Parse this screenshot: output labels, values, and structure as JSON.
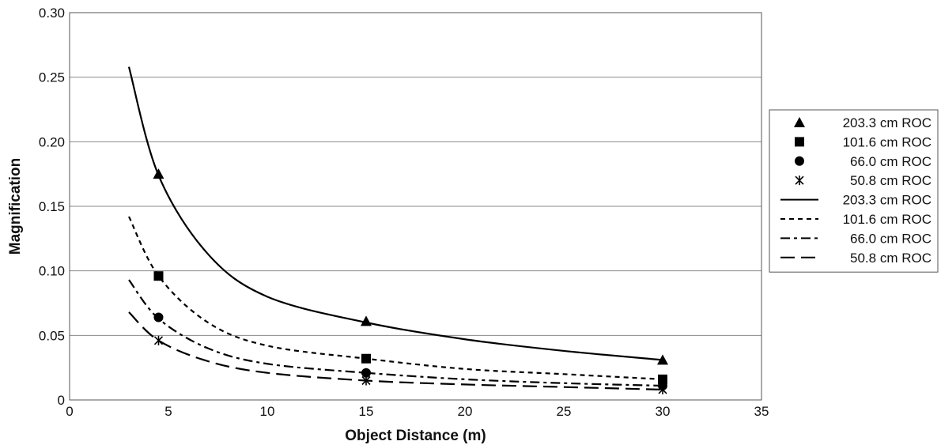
{
  "chart_data": {
    "type": "scatter",
    "title": "",
    "xlabel": "Object Distance (m)",
    "ylabel": "Magnification",
    "xlim": [
      0,
      35
    ],
    "ylim": [
      0,
      0.3
    ],
    "x_ticks": [
      0,
      5,
      10,
      15,
      20,
      25,
      30,
      35
    ],
    "y_ticks": [
      0,
      0.05,
      0.1,
      0.15,
      0.2,
      0.25,
      0.3
    ],
    "x_tick_labels": [
      "0",
      "5",
      "10",
      "15",
      "20",
      "25",
      "30",
      "35"
    ],
    "y_tick_labels": [
      "0",
      "0.05",
      "0.10",
      "0.15",
      "0.20",
      "0.25",
      "0.30"
    ],
    "grid": "horizontal",
    "legend_position": "right",
    "series": [
      {
        "name": "203.3 cm ROC",
        "kind": "points",
        "marker": "triangle",
        "x": [
          4.5,
          15,
          30
        ],
        "y": [
          0.175,
          0.061,
          0.031
        ]
      },
      {
        "name": "101.6 cm ROC",
        "kind": "points",
        "marker": "square",
        "x": [
          4.5,
          15,
          30
        ],
        "y": [
          0.096,
          0.032,
          0.016
        ]
      },
      {
        "name": "66.0 cm ROC",
        "kind": "points",
        "marker": "circle",
        "x": [
          4.5,
          15,
          30
        ],
        "y": [
          0.064,
          0.021,
          0.011
        ]
      },
      {
        "name": "50.8 cm ROC",
        "kind": "points",
        "marker": "star",
        "x": [
          4.5,
          15,
          30
        ],
        "y": [
          0.046,
          0.015,
          0.008
        ]
      },
      {
        "name": "203.3 cm ROC",
        "kind": "curve",
        "dash": "solid",
        "x": [
          3,
          4.5,
          7,
          10,
          15,
          20,
          25,
          30
        ],
        "y": [
          0.258,
          0.174,
          0.113,
          0.08,
          0.06,
          0.047,
          0.038,
          0.031
        ]
      },
      {
        "name": "101.6 cm ROC",
        "kind": "curve",
        "dash": "short-dash",
        "x": [
          3,
          4.5,
          7,
          10,
          15,
          20,
          25,
          30
        ],
        "y": [
          0.142,
          0.096,
          0.06,
          0.042,
          0.032,
          0.024,
          0.02,
          0.016
        ]
      },
      {
        "name": "66.0 cm ROC",
        "kind": "curve",
        "dash": "dash-dot",
        "x": [
          3,
          4.5,
          7,
          10,
          15,
          20,
          25,
          30
        ],
        "y": [
          0.093,
          0.063,
          0.04,
          0.028,
          0.021,
          0.016,
          0.013,
          0.011
        ]
      },
      {
        "name": "50.8 cm ROC",
        "kind": "curve",
        "dash": "long-dash",
        "x": [
          3,
          4.5,
          7,
          10,
          15,
          20,
          25,
          30
        ],
        "y": [
          0.068,
          0.046,
          0.03,
          0.021,
          0.015,
          0.012,
          0.01,
          0.008
        ]
      }
    ]
  }
}
